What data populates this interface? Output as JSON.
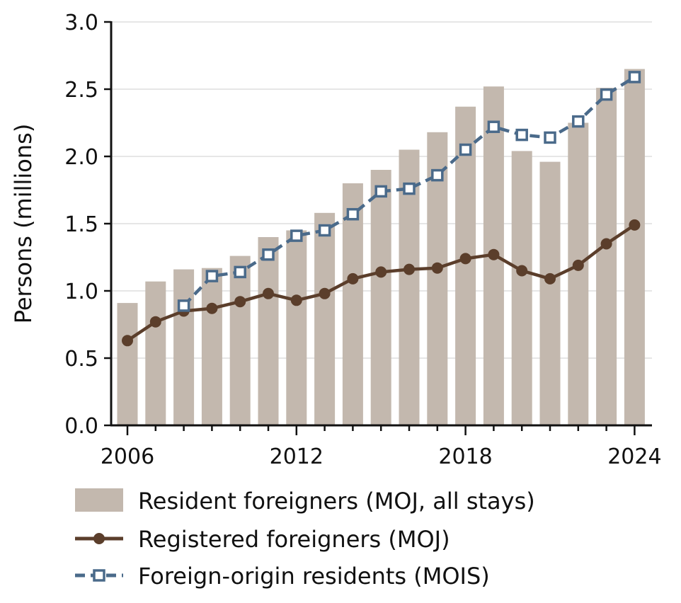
{
  "chart_data": {
    "type": "bar",
    "title": "",
    "xlabel": "",
    "ylabel": "Persons (millions)",
    "ylim": [
      0,
      3.0
    ],
    "yticks": [
      "0.0",
      "0.5",
      "1.0",
      "1.5",
      "2.0",
      "2.5",
      "3.0"
    ],
    "ytick_values": [
      0,
      0.5,
      1.0,
      1.5,
      2.0,
      2.5,
      3.0
    ],
    "x": [
      2006,
      2007,
      2008,
      2009,
      2010,
      2011,
      2012,
      2013,
      2014,
      2015,
      2016,
      2017,
      2018,
      2019,
      2020,
      2021,
      2022,
      2023,
      2024
    ],
    "xtick_labels": [
      "2006",
      "2012",
      "2018",
      "2024"
    ],
    "xtick_values": [
      2006,
      2012,
      2018,
      2024
    ],
    "grid": "horizontal",
    "legend_position": "bottom",
    "series": [
      {
        "name": "Resident foreigners (MOJ, all stays)",
        "kind": "bar",
        "color": "#c3b8ae",
        "values": [
          0.91,
          1.07,
          1.16,
          1.17,
          1.26,
          1.4,
          1.45,
          1.58,
          1.8,
          1.9,
          2.05,
          2.18,
          2.37,
          2.52,
          2.04,
          1.96,
          2.25,
          2.51,
          2.65
        ]
      },
      {
        "name": "Registered foreigners (MOJ)",
        "kind": "line",
        "color": "#5b3e2b",
        "marker": "circle",
        "values": [
          0.63,
          0.77,
          0.85,
          0.87,
          0.92,
          0.98,
          0.93,
          0.98,
          1.09,
          1.14,
          1.16,
          1.17,
          1.24,
          1.27,
          1.15,
          1.09,
          1.19,
          1.35,
          1.49
        ]
      },
      {
        "name": "Foreign-origin residents (MOIS)",
        "kind": "line",
        "color": "#4a6a8a",
        "marker": "open-square",
        "linestyle": "dashed",
        "x": [
          2008,
          2009,
          2010,
          2011,
          2012,
          2013,
          2014,
          2015,
          2016,
          2017,
          2018,
          2019,
          2020,
          2021,
          2022,
          2023,
          2024
        ],
        "values": [
          0.89,
          1.11,
          1.14,
          1.27,
          1.41,
          1.45,
          1.57,
          1.74,
          1.76,
          1.86,
          2.05,
          2.22,
          2.16,
          2.14,
          2.26,
          2.46,
          2.59
        ]
      }
    ]
  }
}
